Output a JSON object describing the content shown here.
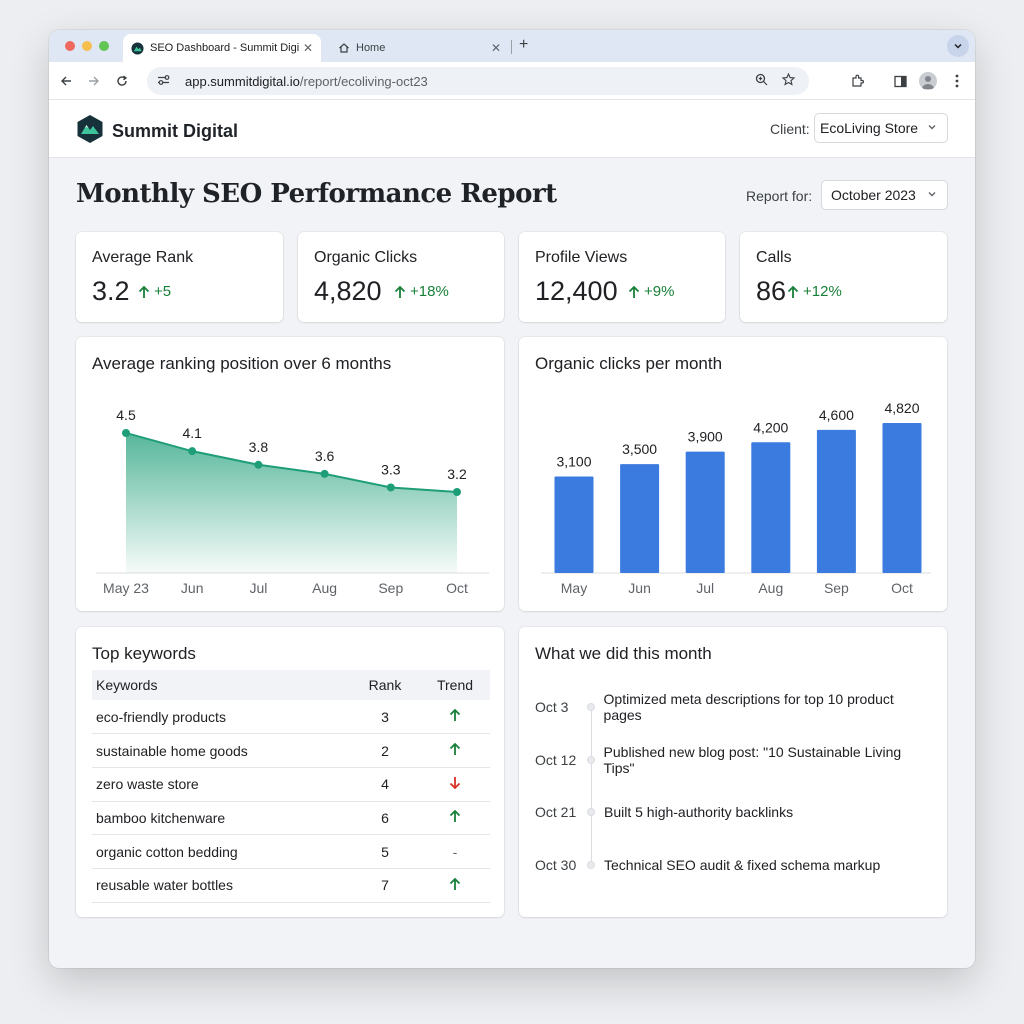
{
  "browser": {
    "tabs": [
      {
        "title": "SEO Dashboard - Summit Digital",
        "active": true
      },
      {
        "title": "Home",
        "active": false
      }
    ],
    "url_host": "app.summitdigital.io",
    "url_path": "/report/ecoliving-oct23"
  },
  "header": {
    "brand": "Summit Digital",
    "client_label": "Client:",
    "client_value": "EcoLiving Store"
  },
  "report": {
    "title": "Monthly SEO Performance Report",
    "period_label": "Report for:",
    "period_value": "October 2023"
  },
  "kpis": [
    {
      "label": "Average Rank",
      "value": "3.2",
      "delta": "+5"
    },
    {
      "label": "Organic Clicks",
      "value": "4,820",
      "delta": "+18%"
    },
    {
      "label": "Profile Views",
      "value": "12,400",
      "delta": "+9%"
    },
    {
      "label": "Calls",
      "value": "86",
      "delta": "+12%"
    }
  ],
  "chart_data": [
    {
      "type": "area",
      "title": "Average ranking position over 6 months",
      "categories": [
        "May 23",
        "Jun",
        "Jul",
        "Aug",
        "Sep",
        "Oct"
      ],
      "values": [
        4.5,
        4.1,
        3.8,
        3.6,
        3.3,
        3.2
      ],
      "labels": [
        "4.5",
        "4.1",
        "3.8",
        "3.6",
        "3.3",
        "3.2"
      ],
      "color": "#1e9e78",
      "grid": false
    },
    {
      "type": "bar",
      "title": "Organic clicks per month",
      "categories": [
        "May",
        "Jun",
        "Jul",
        "Aug",
        "Sep",
        "Oct"
      ],
      "values": [
        3100,
        3500,
        3900,
        4200,
        4600,
        4820
      ],
      "labels": [
        "3,100",
        "3,500",
        "3,900",
        "4,200",
        "4,600",
        "4,820"
      ],
      "color": "#3b7be0",
      "grid": false
    }
  ],
  "keywords": {
    "title": "Top keywords",
    "columns": [
      "Keywords",
      "Rank",
      "Trend"
    ],
    "rows": [
      {
        "keyword": "eco-friendly products",
        "rank": "3",
        "trend": "up"
      },
      {
        "keyword": "sustainable home goods",
        "rank": "2",
        "trend": "up"
      },
      {
        "keyword": "zero waste store",
        "rank": "4",
        "trend": "down"
      },
      {
        "keyword": "bamboo kitchenware",
        "rank": "6",
        "trend": "up"
      },
      {
        "keyword": "organic cotton bedding",
        "rank": "5",
        "trend": "flat"
      },
      {
        "keyword": "reusable water bottles",
        "rank": "7",
        "trend": "up"
      }
    ]
  },
  "activity": {
    "title": "What we did this month",
    "items": [
      {
        "date": "Oct 3",
        "text": "Optimized meta descriptions for top 10 product pages"
      },
      {
        "date": "Oct 12",
        "text": "Published new blog post: \"10 Sustainable Living Tips\""
      },
      {
        "date": "Oct 21",
        "text": "Built 5 high-authority backlinks"
      },
      {
        "date": "Oct 30",
        "text": "Technical SEO audit & fixed schema markup"
      }
    ]
  },
  "colors": {
    "accent_green": "#188038",
    "down_red": "#d93025"
  }
}
